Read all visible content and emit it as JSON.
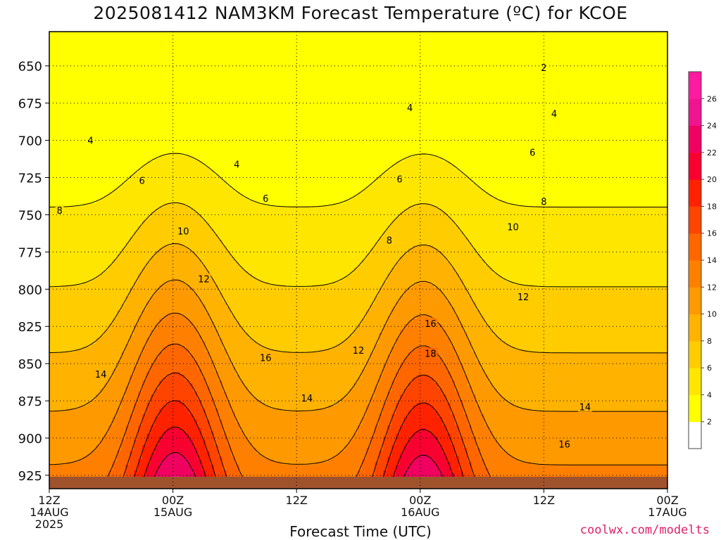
{
  "chart_data": {
    "type": "heatmap",
    "title": "2025081412 NAM3KM Forecast Temperature (ºC) for KCOE",
    "xlabel": "Forecast Time (UTC)",
    "ylabel": "",
    "credit": "coolwx.com/modelts",
    "y_axis": {
      "quantity": "pressure (hPa)",
      "range": [
        627,
        934
      ],
      "ticks": [
        650,
        675,
        700,
        725,
        750,
        775,
        800,
        825,
        850,
        875,
        900,
        925
      ],
      "grid": "dotted"
    },
    "x_axis": {
      "quantity": "forecast hour",
      "range": [
        0,
        60
      ],
      "ticks": [
        {
          "hour": 0,
          "label": [
            "12Z",
            "14AUG",
            "2025"
          ]
        },
        {
          "hour": 12,
          "label": [
            "00Z",
            "15AUG"
          ]
        },
        {
          "hour": 24,
          "label": [
            "12Z"
          ]
        },
        {
          "hour": 36,
          "label": [
            "00Z",
            "16AUG"
          ]
        },
        {
          "hour": 48,
          "label": [
            "12Z"
          ]
        },
        {
          "hour": 60,
          "label": [
            "00Z",
            "17AUG"
          ]
        }
      ],
      "grid": "dotted"
    },
    "colorbar": {
      "placement": "right",
      "levels": [
        2,
        4,
        6,
        8,
        10,
        12,
        14,
        16,
        18,
        20,
        22,
        24,
        26
      ],
      "colors": [
        "#ffffff",
        "#ffff00",
        "#ffe600",
        "#ffcc00",
        "#ffb200",
        "#ff9900",
        "#ff8000",
        "#ff6600",
        "#ff4400",
        "#ff2200",
        "#f80030",
        "#f00060",
        "#f01490",
        "#ff1aa0"
      ]
    },
    "contour_labels": [
      {
        "value": "2",
        "hour": 48.0,
        "pressure": 651
      },
      {
        "value": "4",
        "hour": 4.0,
        "pressure": 700
      },
      {
        "value": "4",
        "hour": 18.2,
        "pressure": 716
      },
      {
        "value": "4",
        "hour": 35.0,
        "pressure": 678
      },
      {
        "value": "4",
        "hour": 49.0,
        "pressure": 682
      },
      {
        "value": "6",
        "hour": 9.0,
        "pressure": 727
      },
      {
        "value": "6",
        "hour": 21.0,
        "pressure": 739
      },
      {
        "value": "6",
        "hour": 34.0,
        "pressure": 726
      },
      {
        "value": "6",
        "hour": 46.9,
        "pressure": 708
      },
      {
        "value": "8",
        "hour": 1.0,
        "pressure": 747
      },
      {
        "value": "8",
        "hour": 33.0,
        "pressure": 767
      },
      {
        "value": "8",
        "hour": 48.0,
        "pressure": 741
      },
      {
        "value": "10",
        "hour": 13.0,
        "pressure": 761
      },
      {
        "value": "10",
        "hour": 45.0,
        "pressure": 758
      },
      {
        "value": "12",
        "hour": 15.0,
        "pressure": 793
      },
      {
        "value": "12",
        "hour": 30.0,
        "pressure": 841
      },
      {
        "value": "12",
        "hour": 46.0,
        "pressure": 805
      },
      {
        "value": "14",
        "hour": 5.0,
        "pressure": 857
      },
      {
        "value": "14",
        "hour": 25.0,
        "pressure": 873
      },
      {
        "value": "14",
        "hour": 52.0,
        "pressure": 879
      },
      {
        "value": "16",
        "hour": 21.0,
        "pressure": 846
      },
      {
        "value": "16",
        "hour": 37.0,
        "pressure": 823
      },
      {
        "value": "16",
        "hour": 50.0,
        "pressure": 904
      },
      {
        "value": "18",
        "hour": 37.0,
        "pressure": 843
      }
    ]
  }
}
